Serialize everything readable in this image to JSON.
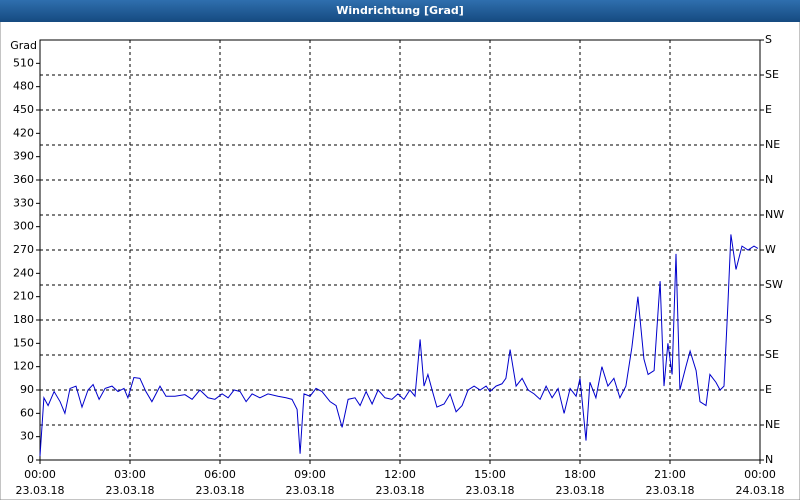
{
  "chart_data": {
    "type": "line",
    "title": "Windrichtung [Grad]",
    "y_unit": "Grad",
    "x": [
      0,
      0.13,
      0.27,
      0.47,
      0.67,
      0.83,
      1.0,
      1.2,
      1.4,
      1.6,
      1.77,
      1.97,
      2.17,
      2.4,
      2.6,
      2.8,
      2.93,
      3.13,
      3.33,
      3.53,
      3.73,
      4.0,
      4.2,
      4.5,
      4.83,
      5.07,
      5.33,
      5.6,
      5.83,
      6.07,
      6.27,
      6.47,
      6.67,
      6.87,
      7.07,
      7.33,
      7.6,
      7.93,
      8.2,
      8.4,
      8.57,
      8.67,
      8.8,
      9.0,
      9.2,
      9.4,
      9.67,
      9.87,
      10.07,
      10.27,
      10.5,
      10.67,
      10.87,
      11.07,
      11.27,
      11.5,
      11.73,
      11.93,
      12.13,
      12.33,
      12.5,
      12.67,
      12.8,
      12.93,
      13.07,
      13.23,
      13.47,
      13.67,
      13.87,
      14.07,
      14.27,
      14.47,
      14.67,
      14.87,
      15.0,
      15.2,
      15.4,
      15.53,
      15.67,
      15.87,
      16.07,
      16.27,
      16.47,
      16.67,
      16.87,
      17.07,
      17.27,
      17.47,
      17.67,
      17.87,
      18.0,
      18.2,
      18.33,
      18.53,
      18.73,
      18.93,
      19.13,
      19.33,
      19.53,
      19.73,
      19.93,
      20.13,
      20.27,
      20.47,
      20.67,
      20.8,
      20.93,
      21.07,
      21.2,
      21.33,
      21.53,
      21.67,
      21.87,
      22.0,
      22.2,
      22.33,
      22.53,
      22.67,
      22.8,
      22.93,
      23.03,
      23.2,
      23.4,
      23.6,
      23.8,
      23.93
    ],
    "series": [
      {
        "color": "#0000cc",
        "values": [
          5,
          80,
          70,
          88,
          75,
          60,
          92,
          95,
          68,
          90,
          97,
          78,
          92,
          95,
          88,
          92,
          80,
          106,
          105,
          88,
          75,
          95,
          82,
          82,
          84,
          78,
          90,
          80,
          78,
          85,
          80,
          90,
          88,
          75,
          85,
          80,
          85,
          82,
          80,
          78,
          65,
          8,
          85,
          82,
          92,
          88,
          75,
          70,
          42,
          78,
          80,
          70,
          88,
          72,
          90,
          80,
          78,
          85,
          78,
          90,
          82,
          155,
          95,
          110,
          90,
          68,
          72,
          85,
          62,
          70,
          90,
          95,
          90,
          95,
          88,
          95,
          98,
          105,
          142,
          95,
          105,
          90,
          85,
          78,
          95,
          80,
          92,
          60,
          92,
          82,
          105,
          25,
          100,
          80,
          120,
          95,
          105,
          80,
          95,
          145,
          210,
          130,
          110,
          115,
          230,
          95,
          150,
          110,
          265,
          90,
          120,
          140,
          115,
          75,
          70,
          110,
          100,
          90,
          95,
          200,
          290,
          245,
          275,
          270,
          275,
          272
        ]
      }
    ],
    "xlim": [
      0,
      24
    ],
    "xticks": [
      {
        "value": 0,
        "label": "00:00",
        "date": "23.03.18"
      },
      {
        "value": 3,
        "label": "03:00",
        "date": "23.03.18"
      },
      {
        "value": 6,
        "label": "06:00",
        "date": "23.03.18"
      },
      {
        "value": 9,
        "label": "09:00",
        "date": "23.03.18"
      },
      {
        "value": 12,
        "label": "12:00",
        "date": "23.03.18"
      },
      {
        "value": 15,
        "label": "15:00",
        "date": "23.03.18"
      },
      {
        "value": 18,
        "label": "18:00",
        "date": "23.03.18"
      },
      {
        "value": 21,
        "label": "21:00",
        "date": "23.03.18"
      },
      {
        "value": 24,
        "label": "00:00",
        "date": "24.03.18"
      }
    ],
    "ylim": [
      0,
      540
    ],
    "yticks": [
      0,
      30,
      60,
      90,
      120,
      150,
      180,
      210,
      240,
      270,
      300,
      330,
      360,
      390,
      420,
      450,
      480,
      510
    ],
    "y2lim": [
      0,
      540
    ],
    "y2ticks": [
      {
        "value": 0,
        "label": "N"
      },
      {
        "value": 45,
        "label": "NE"
      },
      {
        "value": 90,
        "label": "E"
      },
      {
        "value": 135,
        "label": "SE"
      },
      {
        "value": 180,
        "label": "S"
      },
      {
        "value": 225,
        "label": "SW"
      },
      {
        "value": 270,
        "label": "W"
      },
      {
        "value": 315,
        "label": "NW"
      },
      {
        "value": 360,
        "label": "N"
      },
      {
        "value": 405,
        "label": "NE"
      },
      {
        "value": 450,
        "label": "E"
      },
      {
        "value": 495,
        "label": "SE"
      },
      {
        "value": 540,
        "label": "S"
      }
    ],
    "grid": true
  }
}
